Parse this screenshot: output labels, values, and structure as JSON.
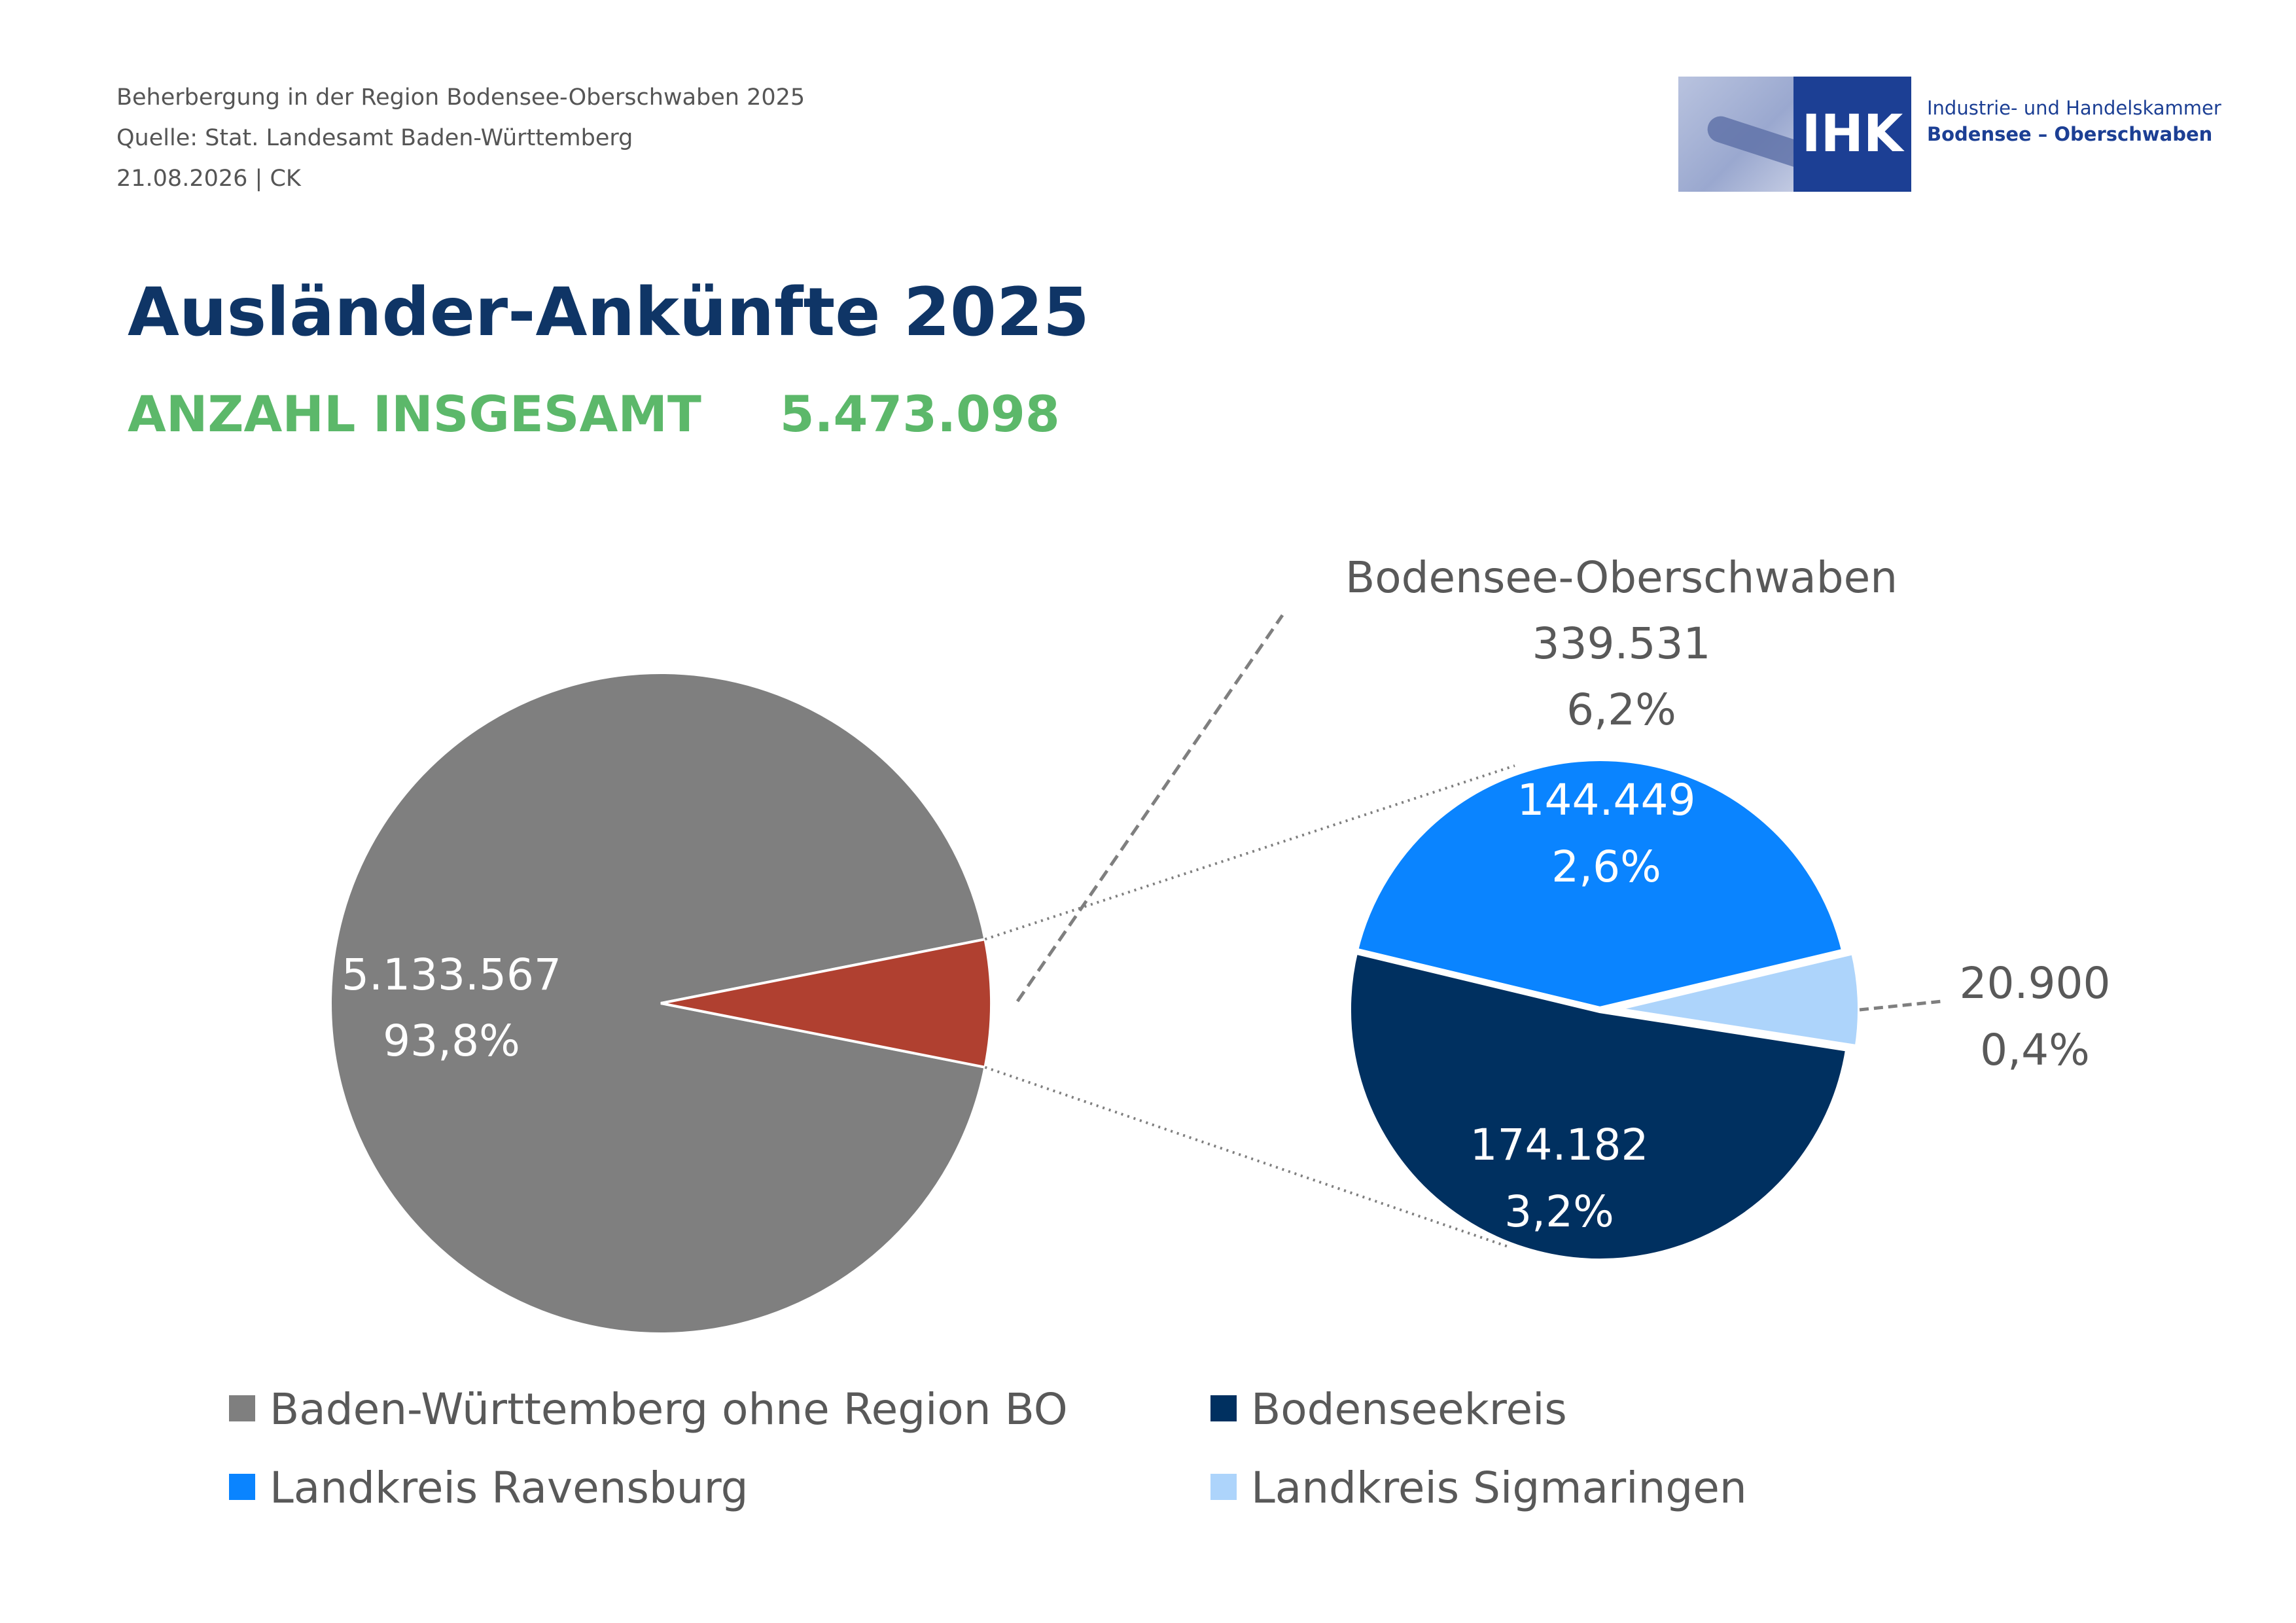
{
  "header": {
    "line1": "Beherbergung in der Region Bodensee-Oberschwaben 2025",
    "line2": "Quelle: Stat. Landesamt Baden-Württemberg",
    "line3": "21.08.2026 | CK"
  },
  "logo": {
    "abbr": "IHK",
    "line1": "Industrie- und Handelskammer",
    "line2": "Bodensee – Oberschwaben"
  },
  "title": "Ausländer-Ankünfte 2025",
  "subtitle": {
    "label": "ANZAHL INSGESAMT",
    "value": "5.473.098"
  },
  "chart_data": {
    "type": "pie",
    "title": "Ausländer-Ankünfte 2025",
    "total": 5473098,
    "main_pie": {
      "slices": [
        {
          "name": "Baden-Württemberg ohne Region BO",
          "value": 5133567,
          "value_label": "5.133.567",
          "percent": "93,8%",
          "color": "#7f7f7f"
        },
        {
          "name": "Bodensee-Oberschwaben",
          "value": 339531,
          "value_label": "339.531",
          "percent": "6,2%",
          "color": "#b04030"
        }
      ]
    },
    "sub_pie": {
      "title": "Bodensee-Oberschwaben",
      "value_label": "339.531",
      "percent": "6,2%",
      "slices": [
        {
          "name": "Landkreis Ravensburg",
          "value": 144449,
          "value_label": "144.449",
          "percent": "2,6%",
          "color": "#0a84ff"
        },
        {
          "name": "Landkreis Sigmaringen",
          "value": 20900,
          "value_label": "20.900",
          "percent": "0,4%",
          "color": "#add4fb"
        },
        {
          "name": "Bodenseekreis",
          "value": 174182,
          "value_label": "174.182",
          "percent": "3,2%",
          "color": "#003060"
        }
      ]
    },
    "legend": [
      {
        "label": "Baden-Württemberg ohne Region BO",
        "color": "#7f7f7f"
      },
      {
        "label": "Bodenseekreis",
        "color": "#003060"
      },
      {
        "label": "Landkreis Ravensburg",
        "color": "#0a84ff"
      },
      {
        "label": "Landkreis Sigmaringen",
        "color": "#add4fb"
      }
    ]
  }
}
